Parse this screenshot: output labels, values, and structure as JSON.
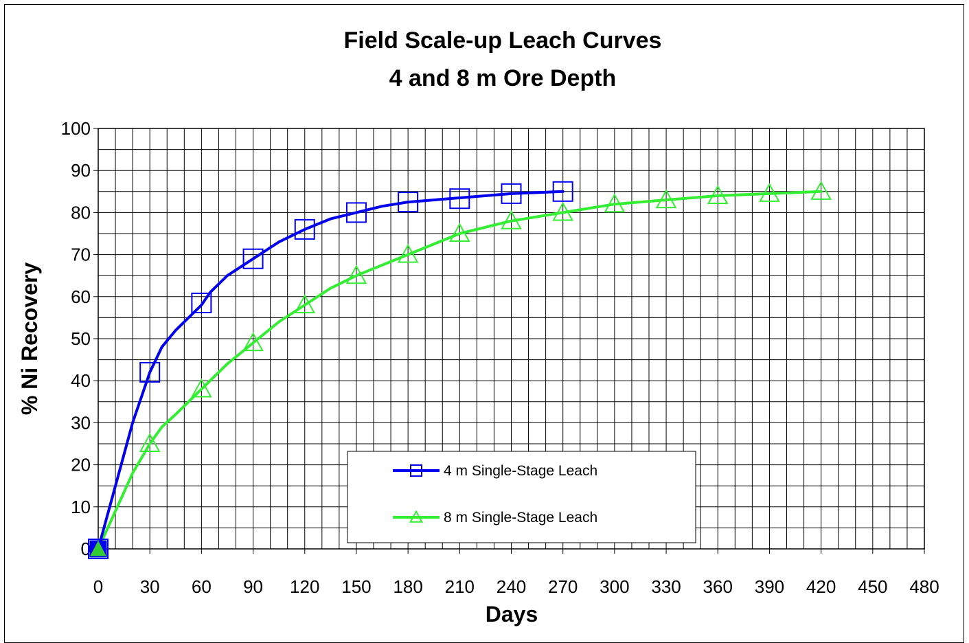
{
  "chart_data": {
    "type": "line",
    "title": "Field Scale-up Leach Curves",
    "subtitle": "4 and 8 m Ore Depth",
    "xlabel": "Days",
    "ylabel": "% Ni Recovery",
    "xlim": [
      0,
      480
    ],
    "ylim": [
      0,
      100
    ],
    "x_ticks": [
      "0",
      "30",
      "60",
      "90",
      "120",
      "150",
      "180",
      "210",
      "240",
      "270",
      "300",
      "330",
      "360",
      "390",
      "420",
      "450",
      "480"
    ],
    "y_ticks": [
      "0",
      "10",
      "20",
      "30",
      "40",
      "50",
      "60",
      "70",
      "80",
      "90",
      "100"
    ],
    "grid": true,
    "legend_position": "bottom-center",
    "series": [
      {
        "name": "4 m Single-Stage Leach",
        "color": "#0000ee",
        "marker": "square",
        "curve_x": [
          0,
          10,
          20,
          30,
          37,
          45,
          60,
          65,
          75,
          90,
          105,
          120,
          135,
          150,
          165,
          180,
          210,
          240,
          270
        ],
        "curve_y": [
          0,
          15,
          30,
          42,
          48,
          52,
          58,
          61,
          65,
          69,
          73,
          76,
          78.5,
          80,
          81.5,
          82.5,
          83.5,
          84.5,
          85
        ],
        "marker_x": [
          0,
          30,
          60,
          90,
          120,
          150,
          180,
          210,
          240,
          270
        ],
        "marker_y": [
          0,
          42,
          58.5,
          69,
          76,
          80,
          82.5,
          83.3,
          84.5,
          85
        ]
      },
      {
        "name": "8 m Single-Stage Leach",
        "color": "#33ee33",
        "marker": "triangle",
        "curve_x": [
          0,
          10,
          20,
          30,
          37,
          45,
          60,
          75,
          90,
          105,
          120,
          135,
          150,
          180,
          210,
          240,
          270,
          300,
          330,
          360,
          390,
          420
        ],
        "curve_y": [
          0,
          9,
          18,
          25,
          29,
          32,
          38,
          44,
          49,
          54,
          58,
          62,
          65,
          70,
          75,
          78,
          80,
          82,
          83,
          84,
          84.5,
          85
        ],
        "marker_x": [
          0,
          30,
          60,
          90,
          120,
          150,
          180,
          210,
          240,
          270,
          300,
          330,
          360,
          390,
          420
        ],
        "marker_y": [
          0,
          25,
          38,
          49,
          58,
          65,
          70,
          75,
          78,
          80,
          82,
          83,
          84,
          84.5,
          85
        ]
      }
    ]
  }
}
